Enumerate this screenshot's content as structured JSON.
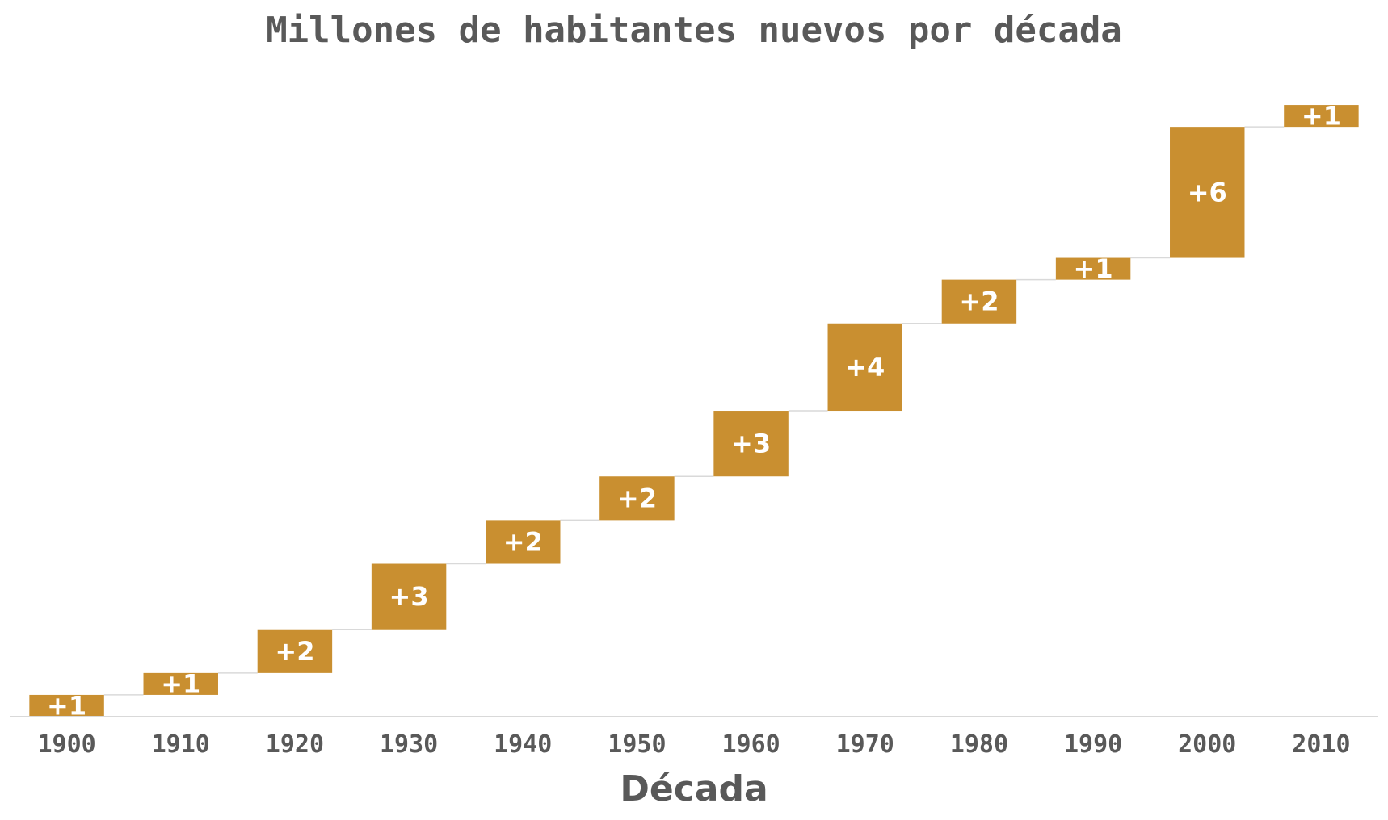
{
  "chart_data": {
    "type": "bar",
    "subtype": "waterfall",
    "title": "Millones de habitantes nuevos por década",
    "xlabel": "Década",
    "ylabel": "",
    "categories": [
      "1900",
      "1910",
      "1920",
      "1930",
      "1940",
      "1950",
      "1960",
      "1970",
      "1980",
      "1990",
      "2000",
      "2010"
    ],
    "values": [
      1,
      1,
      2,
      3,
      2,
      2,
      3,
      4,
      2,
      1,
      6,
      1
    ],
    "data_labels": [
      "+1",
      "+1",
      "+2",
      "+3",
      "+2",
      "+2",
      "+3",
      "+4",
      "+2",
      "+1",
      "+6",
      "+1"
    ],
    "ylim": [
      0,
      29
    ],
    "grid": false,
    "legend": "none",
    "colors": {
      "bar": "#C98F30",
      "connector": "#D9D9D9",
      "axis": "#D9D9D9",
      "text": "#595959",
      "label": "#FFFFFF"
    }
  }
}
